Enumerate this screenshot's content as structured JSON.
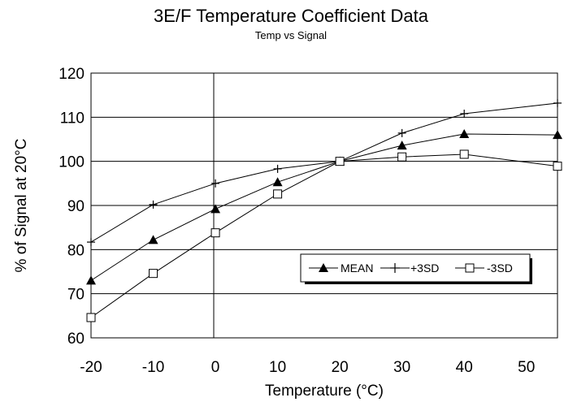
{
  "chart_data": {
    "type": "line",
    "title": "3E/F Temperature Coefficient Data",
    "subtitle": "Temp vs Signal",
    "xlabel": "Temperature (°C)",
    "ylabel": "% of Signal at 20°C",
    "xlim": [
      -20,
      55
    ],
    "ylim": [
      60,
      120
    ],
    "x_ticks": [
      -20,
      -10,
      0,
      10,
      20,
      30,
      40,
      50
    ],
    "y_ticks": [
      60,
      70,
      80,
      90,
      100,
      110,
      120
    ],
    "grid": "horizontal",
    "legend_position": "right",
    "series": [
      {
        "name": "MEAN",
        "marker": "filled-triangle",
        "x": [
          -20,
          -10,
          0,
          10,
          20,
          30,
          40,
          55
        ],
        "values": [
          73.0,
          82.2,
          89.2,
          95.3,
          100.0,
          103.6,
          106.2,
          106.0
        ]
      },
      {
        "name": "+3SD",
        "marker": "plus",
        "x": [
          -20,
          -10,
          0,
          10,
          20,
          30,
          40,
          55
        ],
        "values": [
          81.7,
          90.2,
          95.0,
          98.3,
          100.0,
          106.4,
          110.8,
          113.2
        ]
      },
      {
        "name": "-3SD",
        "marker": "open-square",
        "x": [
          -20,
          -10,
          0,
          10,
          20,
          30,
          40,
          55
        ],
        "values": [
          64.6,
          74.6,
          83.8,
          92.6,
          100.0,
          101.0,
          101.6,
          98.9
        ]
      }
    ]
  }
}
